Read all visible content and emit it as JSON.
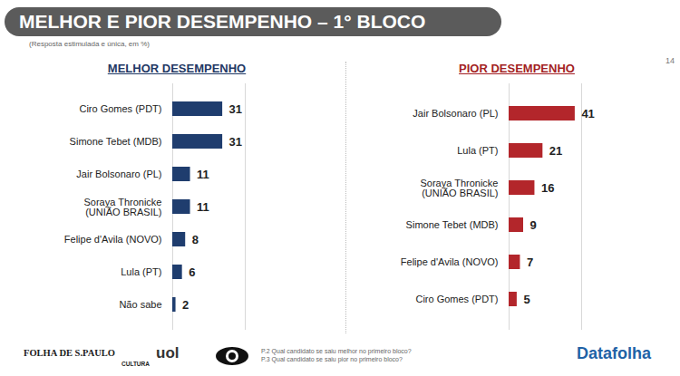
{
  "title": "MELHOR E PIOR DESEMPENHO – 1° BLOCO",
  "subtitle": "(Resposta estimulada e única, em %)",
  "page_number": "14",
  "chart_data": [
    {
      "type": "bar",
      "title": "MELHOR DESEMPENHO",
      "orientation": "horizontal",
      "categories": [
        "Ciro Gomes (PDT)",
        "Simone Tebet (MDB)",
        "Jair Bolsonaro (PL)",
        "Soraya Thronicke (UNIÃO BRASIL)",
        "Felipe d'Avila (NOVO)",
        "Lula (PT)",
        "Não sabe"
      ],
      "values": [
        31,
        31,
        11,
        11,
        8,
        6,
        2
      ],
      "color": "#1f3d6e",
      "xlim": [
        0,
        45
      ],
      "data_labels": true,
      "tick_labels": "y",
      "grid": false
    },
    {
      "type": "bar",
      "title": "PIOR DESEMPENHO",
      "orientation": "horizontal",
      "categories": [
        "Jair Bolsonaro (PL)",
        "Lula (PT)",
        "Soraya Thronicke (UNIÃO BRASIL)",
        "Simone Tebet (MDB)",
        "Felipe d'Avila (NOVO)",
        "Ciro Gomes (PDT)"
      ],
      "values": [
        41,
        21,
        16,
        9,
        7,
        5
      ],
      "color": "#b3262b",
      "xlim": [
        0,
        45
      ],
      "data_labels": true,
      "tick_labels": "y",
      "grid": false
    }
  ],
  "footer": {
    "logos": [
      "FOLHA DE S.PAULO",
      "CULTURA",
      "uol"
    ],
    "notes": [
      "P.2 Qual candidato se saiu melhor no primeiro bloco?",
      "P.3 Qual candidato se saiu pior no primeiro bloco?"
    ],
    "source": "Datafolha"
  }
}
